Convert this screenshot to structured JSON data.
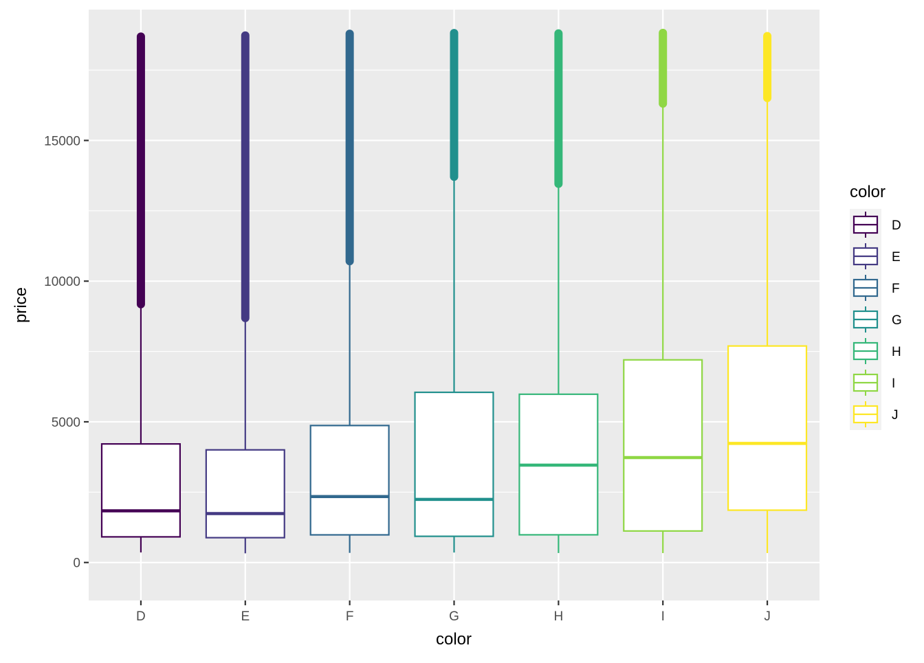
{
  "chart_data": {
    "type": "box",
    "title": "",
    "xlabel": "color",
    "ylabel": "price",
    "ylim": [
      -1350,
      19650
    ],
    "y_ticks": [
      0,
      5000,
      10000,
      15000
    ],
    "y_tick_labels": [
      "0",
      "5000",
      "10000",
      "15000"
    ],
    "categories": [
      "D",
      "E",
      "F",
      "G",
      "H",
      "I",
      "J"
    ],
    "grid": true,
    "legend": {
      "title": "color",
      "position": "right",
      "entries": [
        "D",
        "E",
        "F",
        "G",
        "H",
        "I",
        "J"
      ]
    },
    "series": [
      {
        "name": "D",
        "color": "#440154",
        "whisker_low": 357,
        "q1": 911,
        "median": 1838,
        "q3": 4214,
        "whisker_high": 9170,
        "outliers_range": [
          9180,
          18693
        ]
      },
      {
        "name": "E",
        "color": "#443A83",
        "whisker_low": 326,
        "q1": 882,
        "median": 1739,
        "q3": 4003,
        "whisker_high": 8680,
        "outliers_range": [
          8690,
          18731
        ]
      },
      {
        "name": "F",
        "color": "#31688E",
        "whisker_low": 342,
        "q1": 982,
        "median": 2344,
        "q3": 4868,
        "whisker_high": 10700,
        "outliers_range": [
          10710,
          18791
        ]
      },
      {
        "name": "G",
        "color": "#21908D",
        "whisker_low": 354,
        "q1": 931,
        "median": 2242,
        "q3": 6048,
        "whisker_high": 13700,
        "outliers_range": [
          13710,
          18818
        ]
      },
      {
        "name": "H",
        "color": "#35B779",
        "whisker_low": 337,
        "q1": 984,
        "median": 3460,
        "q3": 5980,
        "whisker_high": 13450,
        "outliers_range": [
          13460,
          18803
        ]
      },
      {
        "name": "I",
        "color": "#8FD744",
        "whisker_low": 334,
        "q1": 1120,
        "median": 3730,
        "q3": 7202,
        "whisker_high": 16300,
        "outliers_range": [
          16310,
          18823
        ]
      },
      {
        "name": "J",
        "color": "#FDE725",
        "whisker_low": 335,
        "q1": 1860,
        "median": 4234,
        "q3": 7695,
        "whisker_high": 16500,
        "outliers_range": [
          16510,
          18710
        ]
      }
    ]
  }
}
